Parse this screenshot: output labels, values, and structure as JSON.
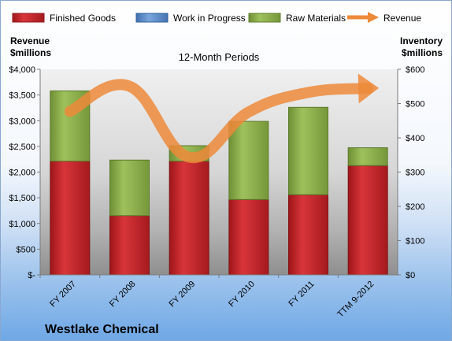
{
  "chart_data": {
    "type": "bar",
    "stacked": true,
    "subtitle": "12-Month Periods",
    "company": "Westlake Chemical",
    "categories": [
      "FY 2007",
      "FY 2008",
      "FY 2009",
      "FY 2010",
      "FY 2011",
      "TTM 9-2012"
    ],
    "left_axis": {
      "title_line1": "Revenue",
      "title_line2": "$millions",
      "ticks": [
        "$-",
        "$500",
        "$1,000",
        "$1,500",
        "$2,000",
        "$2,500",
        "$3,000",
        "$3,500",
        "$4,000"
      ],
      "range": [
        0,
        4000
      ]
    },
    "right_axis": {
      "title_line1": "Inventory",
      "title_line2": "$millions",
      "ticks": [
        "$0",
        "$100",
        "$200",
        "$300",
        "$400",
        "$500",
        "$600"
      ],
      "range": [
        0,
        600
      ]
    },
    "series": [
      {
        "name": "Finished Goods",
        "axis": "right",
        "color": "#c0262a",
        "values": [
          332,
          173,
          332,
          220,
          234,
          319
        ]
      },
      {
        "name": "Work in Progress",
        "axis": "right",
        "color": "#5b8ccc",
        "values": [
          0,
          0,
          0,
          0,
          0,
          0
        ]
      },
      {
        "name": "Raw Materials",
        "axis": "right",
        "color": "#8db04c",
        "values": [
          205,
          162,
          45,
          228,
          255,
          52
        ]
      },
      {
        "name": "Revenue",
        "axis": "left",
        "type": "line",
        "color": "#ed8a3a",
        "values": [
          3180,
          3670,
          2290,
          3170,
          3550,
          3630
        ]
      }
    ],
    "grid": false,
    "legend_position": "top"
  }
}
